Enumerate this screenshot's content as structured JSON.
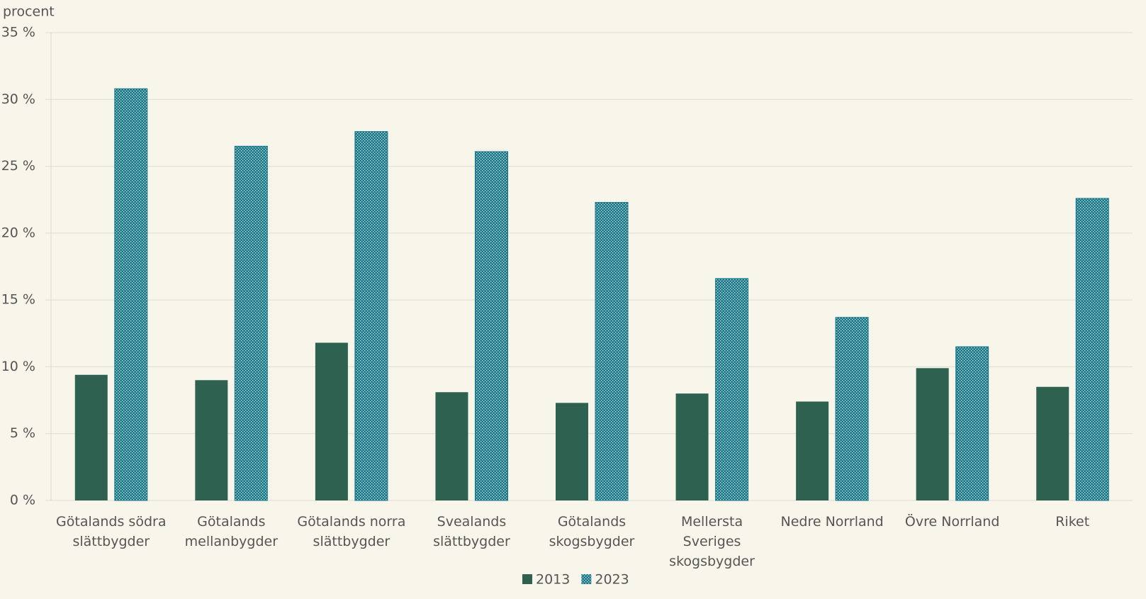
{
  "chart_data": {
    "type": "bar",
    "y_label": "procent",
    "categories": [
      "Götalands södra slättbygder",
      "Götalands mellanbygder",
      "Götalands norra slättbygder",
      "Svealands slättbygder",
      "Götalands skogsbygder",
      "Mellersta Sveriges skogsbygder",
      "Nedre Norrland",
      "Övre Norrland",
      "Riket"
    ],
    "series": [
      {
        "name": "2013",
        "color": "#2e6150",
        "values": [
          9.4,
          9.0,
          11.8,
          8.1,
          7.3,
          8.0,
          7.4,
          9.9,
          8.5
        ]
      },
      {
        "name": "2023",
        "color": "#16788a",
        "pattern": "dots",
        "values": [
          30.8,
          26.5,
          27.6,
          26.1,
          22.3,
          16.6,
          13.7,
          11.5,
          22.6
        ]
      }
    ],
    "ylim": [
      0,
      35
    ],
    "yticks": [
      {
        "value": 0,
        "label": "0 %"
      },
      {
        "value": 5,
        "label": "5 %"
      },
      {
        "value": 10,
        "label": "10 %"
      },
      {
        "value": 15,
        "label": "15 %"
      },
      {
        "value": 20,
        "label": "20 %"
      },
      {
        "value": 25,
        "label": "25 %"
      },
      {
        "value": 30,
        "label": "30 %"
      },
      {
        "value": 35,
        "label": "35 %"
      }
    ],
    "grid": true,
    "legend": "bottom"
  }
}
